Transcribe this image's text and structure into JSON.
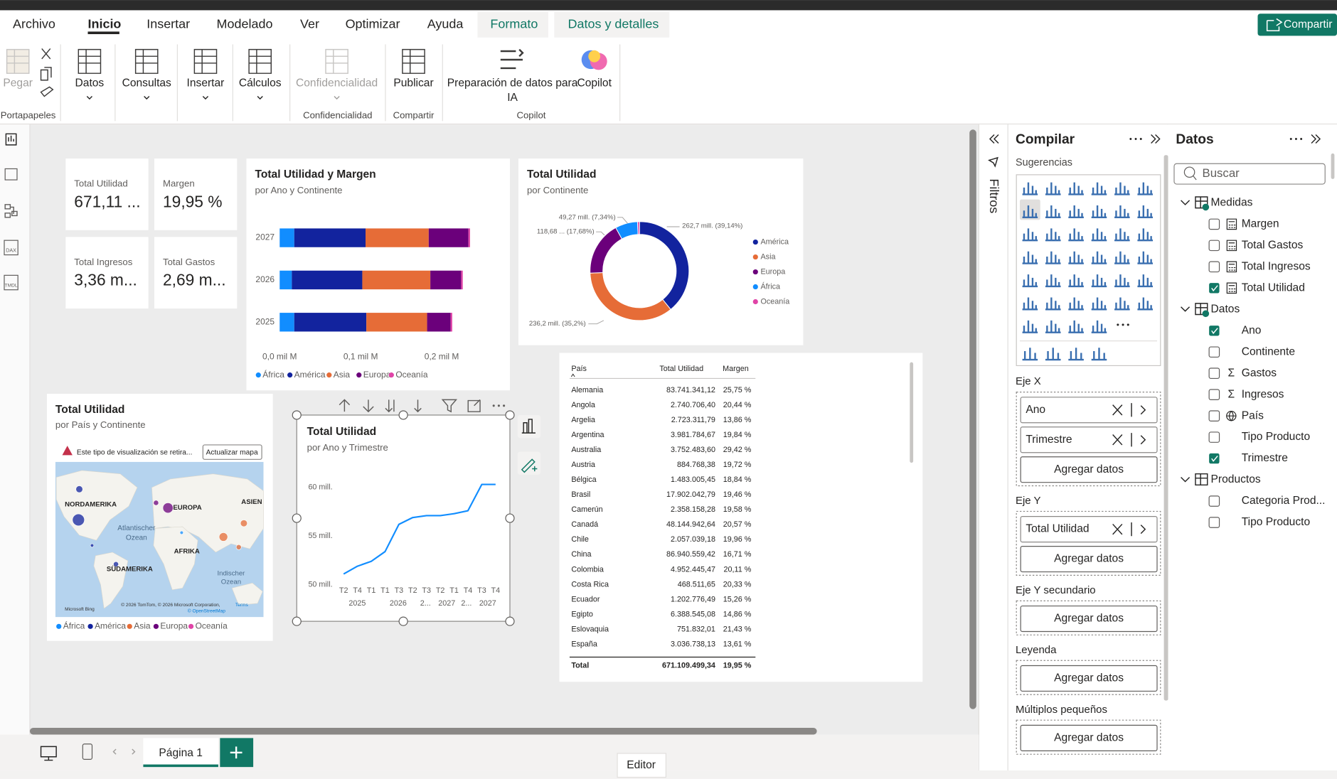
{
  "app": {
    "share": "Compartir",
    "filters_pane": "Filtros",
    "left_rail": [
      "DAX",
      "TMDL"
    ]
  },
  "ribbon": {
    "tabs": [
      "Archivo",
      "Inicio",
      "Insertar",
      "Modelado",
      "Ver",
      "Optimizar",
      "Ayuda",
      "Formato",
      "Datos y detalles"
    ],
    "buttons": [
      [
        "Pegar"
      ],
      [
        "Datos"
      ],
      [
        "Consultas"
      ],
      [
        "Insertar"
      ],
      [
        "Cálculos"
      ],
      [
        "Confidencialidad"
      ],
      [
        "Publicar"
      ],
      [
        "Preparación de datos para",
        "IA"
      ],
      [
        "Copilot"
      ]
    ],
    "groups": [
      "Portapapeles",
      "Confidencialidad",
      "Compartir",
      "Copilot"
    ]
  },
  "cards": [
    {
      "label": "Total Utilidad",
      "value": "671,11 ..."
    },
    {
      "label": "Margen",
      "value": "19,95 %"
    },
    {
      "label": "Total Ingresos",
      "value": "3,36 m..."
    },
    {
      "label": "Total Gastos",
      "value": "2,69 m..."
    }
  ],
  "chart_data": [
    {
      "type": "bar",
      "orientation": "horizontal",
      "stacked": true,
      "title": "Total Utilidad y Margen",
      "subtitle": "por Ano y Continente",
      "categories": [
        "2027",
        "2026",
        "2025"
      ],
      "series": [
        {
          "name": "África",
          "color": "#118DFF",
          "values": [
            0.018,
            0.015,
            0.018
          ]
        },
        {
          "name": "América",
          "color": "#12239E",
          "values": [
            0.088,
            0.087,
            0.089
          ]
        },
        {
          "name": "Asia",
          "color": "#E66C37",
          "values": [
            0.078,
            0.084,
            0.075
          ]
        },
        {
          "name": "Europa",
          "color": "#6B007B",
          "values": [
            0.049,
            0.038,
            0.029
          ]
        },
        {
          "name": "Oceanía",
          "color": "#E044A7",
          "values": [
            0.002,
            0.002,
            0.002
          ]
        }
      ],
      "xlim": [
        0,
        0.24
      ],
      "xticks": [
        {
          "value": 0,
          "label": "0,0 mil M"
        },
        {
          "value": 0.1,
          "label": "0,1 mil M"
        },
        {
          "value": 0.2,
          "label": "0,2 mil M"
        }
      ],
      "legend": "bottom",
      "grid": false
    },
    {
      "type": "pie",
      "donut": true,
      "title": "Total Utilidad",
      "subtitle": "por Continente",
      "categories": [
        "América",
        "Asia",
        "Europa",
        "África",
        "Oceanía"
      ],
      "values": [
        262.7,
        236.2,
        118.68,
        49.27,
        4.3
      ],
      "value_labels": [
        "262,7 mill. (39,14%)",
        "236,2 mill. (35,2%)",
        "118,68 ... (17,68%)",
        "49,27 mill. (7,34%)",
        null
      ],
      "colors": [
        "#12239E",
        "#E66C37",
        "#6B007B",
        "#118DFF",
        "#E044A7"
      ],
      "legend": "right"
    },
    {
      "type": "line",
      "title": "Total Utilidad",
      "subtitle": "por Ano y Trimestre",
      "categories": [
        "T2",
        "T4",
        "T1",
        "T1",
        "T3",
        "T2",
        "T3",
        "T2",
        "T1",
        "T4",
        "T3",
        "T4"
      ],
      "x_group_labels": [
        "2025",
        "2026",
        "2...",
        "2027",
        "2...",
        "2027"
      ],
      "values": [
        51.1,
        51.9,
        52.4,
        53.4,
        56.2,
        56.9,
        57.1,
        57.1,
        57.3,
        57.6,
        60.3,
        60.3
      ],
      "color": "#118DFF",
      "ylim": [
        49.6,
        60.6
      ],
      "yticks": [
        {
          "value": 50,
          "label": "50 mill."
        },
        {
          "value": 55,
          "label": "55 mill."
        },
        {
          "value": 60,
          "label": "60 mill."
        }
      ],
      "grid": false
    }
  ],
  "map_visual": {
    "title": "Total Utilidad",
    "subtitle": "por País y Continente",
    "warning": "Este tipo de visualización se retira...",
    "button": "Actualizar mapa",
    "labels": [
      "NORDAMERIKA",
      "EUROPA",
      "ASIEN",
      "Atlantischer",
      "Ozean",
      "AFRIKA",
      "SÜDAMERIKA",
      "Indischer",
      "Ozean"
    ],
    "attribution": [
      "© 2026 TomTom, © 2026 Microsoft Corporation,",
      "Terms",
      "© OpenStreetMap"
    ],
    "provider": "Microsoft Bing",
    "legend": [
      "África",
      "América",
      "Asia",
      "Europa",
      "Oceanía"
    ],
    "legend_colors": [
      "#118DFF",
      "#12239E",
      "#E66C37",
      "#6B007B",
      "#E044A7"
    ]
  },
  "table": {
    "columns": [
      "País",
      "Total Utilidad",
      "Margen"
    ],
    "rows": [
      [
        "Alemania",
        "83.741.341,12",
        "25,75 %"
      ],
      [
        "Angola",
        "2.740.706,40",
        "20,44 %"
      ],
      [
        "Argelia",
        "2.723.311,79",
        "13,86 %"
      ],
      [
        "Argentina",
        "3.981.784,67",
        "19,84 %"
      ],
      [
        "Australia",
        "3.752.483,60",
        "29,42 %"
      ],
      [
        "Austria",
        "884.768,38",
        "19,72 %"
      ],
      [
        "Bélgica",
        "1.483.005,45",
        "18,84 %"
      ],
      [
        "Brasil",
        "17.902.042,79",
        "19,46 %"
      ],
      [
        "Camerún",
        "2.358.158,28",
        "19,58 %"
      ],
      [
        "Canadá",
        "48.144.942,64",
        "20,57 %"
      ],
      [
        "Chile",
        "2.057.039,18",
        "19,96 %"
      ],
      [
        "China",
        "86.940.559,42",
        "16,71 %"
      ],
      [
        "Colombia",
        "4.952.445,47",
        "20,11 %"
      ],
      [
        "Costa Rica",
        "468.511,65",
        "20,33 %"
      ],
      [
        "Ecuador",
        "1.202.776,49",
        "15,26 %"
      ],
      [
        "Egipto",
        "6.388.545,08",
        "14,86 %"
      ],
      [
        "Eslovaquia",
        "751.832,01",
        "21,43 %"
      ],
      [
        "España",
        "3.036.738,13",
        "13,61 %"
      ]
    ],
    "total": [
      "Total",
      "671.109.499,34",
      "19,95 %"
    ]
  },
  "build_pane": {
    "title": "Compilar",
    "suggestions": "Sugerencias",
    "wells": [
      {
        "label": "Eje X",
        "fields": [
          "Ano",
          "Trimestre"
        ],
        "add": "Agregar datos"
      },
      {
        "label": "Eje Y",
        "fields": [
          "Total Utilidad"
        ],
        "add": "Agregar datos"
      },
      {
        "label": "Eje Y secundario",
        "fields": [],
        "add": "Agregar datos"
      },
      {
        "label": "Leyenda",
        "fields": [],
        "add": "Agregar datos"
      },
      {
        "label": "Múltiplos pequeños",
        "fields": [],
        "add": "Agregar datos"
      }
    ]
  },
  "data_pane": {
    "title": "Datos",
    "search": "Buscar",
    "tables": [
      {
        "name": "Medidas",
        "fields": [
          {
            "name": "Margen",
            "checked": false,
            "kind": "measure"
          },
          {
            "name": "Total Gastos",
            "checked": false,
            "kind": "measure"
          },
          {
            "name": "Total Ingresos",
            "checked": false,
            "kind": "measure"
          },
          {
            "name": "Total Utilidad",
            "checked": true,
            "kind": "measure"
          }
        ]
      },
      {
        "name": "Datos",
        "fields": [
          {
            "name": "Ano",
            "checked": true,
            "kind": "text"
          },
          {
            "name": "Continente",
            "checked": false,
            "kind": "text"
          },
          {
            "name": "Gastos",
            "checked": false,
            "kind": "sum",
            "icon": "Σ"
          },
          {
            "name": "Ingresos",
            "checked": false,
            "kind": "sum",
            "icon": "Σ"
          },
          {
            "name": "País",
            "checked": false,
            "kind": "geo"
          },
          {
            "name": "Tipo Producto",
            "checked": false,
            "kind": "text"
          },
          {
            "name": "Trimestre",
            "checked": true,
            "kind": "text"
          }
        ]
      },
      {
        "name": "Productos",
        "fields": [
          {
            "name": "Categoria Prod...",
            "checked": false,
            "kind": "text"
          },
          {
            "name": "Tipo Producto",
            "checked": false,
            "kind": "text"
          }
        ]
      }
    ]
  },
  "footer": {
    "page": "Página 1",
    "view": "Editor"
  }
}
